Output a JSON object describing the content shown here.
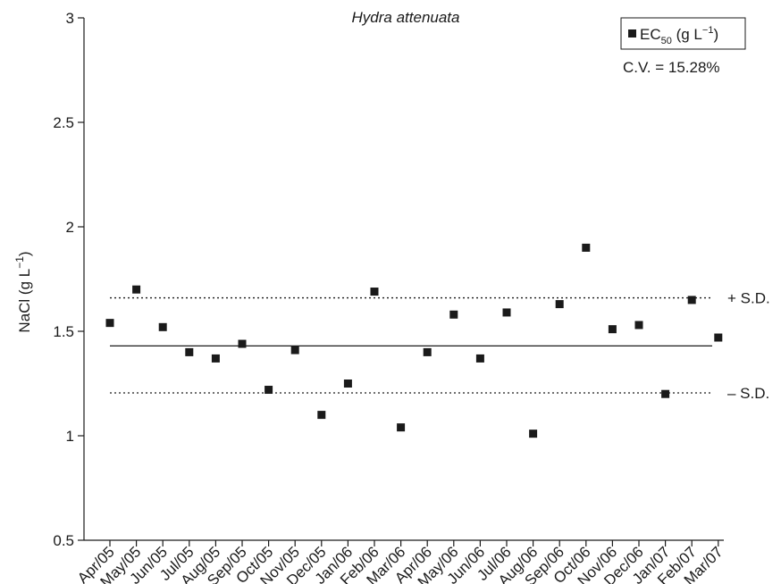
{
  "chart_data": {
    "type": "scatter",
    "title": "Hydra attenuata",
    "ylabel": {
      "base": "NaCl (g L",
      "sup": "−1",
      "close": ")"
    },
    "xlabel": "",
    "ylim": [
      0.5,
      3
    ],
    "y_ticks": [
      "0.5",
      "1",
      "1.5",
      "2",
      "2.5",
      "3"
    ],
    "grid": false,
    "legend_position": "top-right",
    "series": [
      {
        "name": {
          "prefix": "EC",
          "sub": "50",
          "mid": " (g L",
          "sup": "−1",
          "close": ")"
        },
        "marker": "square",
        "color": "#1a1a1a",
        "categories": [
          "Apr/05",
          "May/05",
          "Jun/05",
          "Jul/05",
          "Aug/05",
          "Sep/05",
          "Oct/05",
          "Nov/05",
          "Dec/05",
          "Jan/06",
          "Feb/06",
          "Mar/06",
          "Apr/06",
          "May/06",
          "Jun/06",
          "Jul/06",
          "Aug/06",
          "Sep/06",
          "Oct/06",
          "Nov/06",
          "Dec/06",
          "Jan/07",
          "Feb/07",
          "Mar/07"
        ],
        "values": [
          1.54,
          1.7,
          1.52,
          1.4,
          1.37,
          1.44,
          1.22,
          1.41,
          1.1,
          1.25,
          1.69,
          1.04,
          1.4,
          1.58,
          1.37,
          1.59,
          1.01,
          1.63,
          1.9,
          1.51,
          1.53,
          1.2,
          1.65,
          1.47
        ]
      }
    ],
    "reference_lines": [
      {
        "value": 1.66,
        "style": "dotted",
        "label": "+ S.D."
      },
      {
        "value": 1.43,
        "style": "solid",
        "label": ""
      },
      {
        "value": 1.205,
        "style": "dotted",
        "label": "– S.D."
      }
    ],
    "annotations": [
      "C.V. = 15.28%"
    ]
  }
}
